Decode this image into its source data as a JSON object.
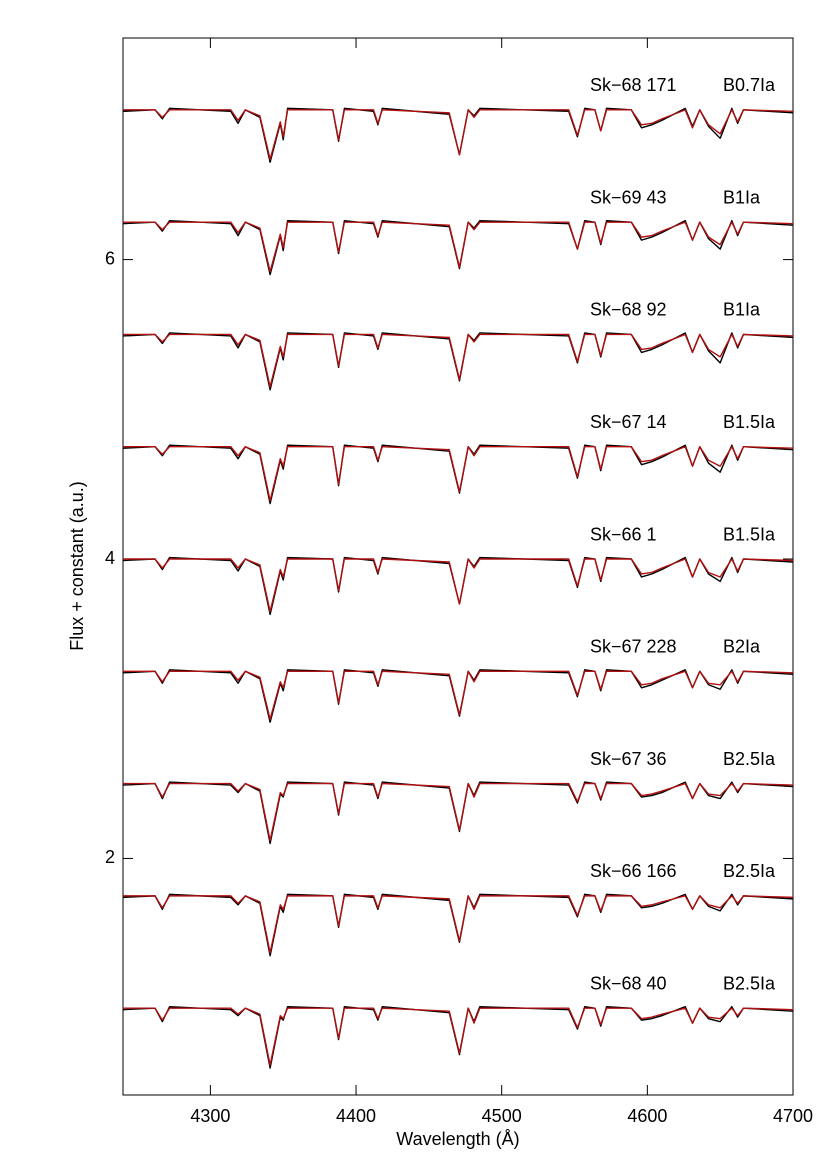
{
  "chart_data": {
    "type": "line",
    "xlabel": "Wavelength (Å)",
    "ylabel": "Flux + constant (a.u.)",
    "xlim": [
      4240,
      4700
    ],
    "ylim": [
      0.42,
      7.48
    ],
    "xticks": [
      4300,
      4400,
      4500,
      4600,
      4700
    ],
    "yticks": [
      2,
      4,
      6
    ],
    "observed_color": "#000000",
    "model_color": "#b01010",
    "x": [
      4240,
      4262,
      4267,
      4272,
      4314,
      4319,
      4324,
      4334,
      4341,
      4348,
      4350,
      4353,
      4384,
      4388,
      4392,
      4412,
      4415,
      4418,
      4464,
      4471,
      4477,
      4481,
      4485,
      4546,
      4552,
      4557,
      4564,
      4568,
      4572,
      4589,
      4596,
      4603,
      4610,
      4626,
      4631,
      4636,
      4642,
      4650,
      4658,
      4662,
      4666,
      4700
    ],
    "stars": [
      {
        "name": "Sk−68 171",
        "sptype": "B0.7Ia",
        "observed": [
          6.99,
          7.0,
          6.94,
          7.01,
          6.99,
          6.91,
          7.0,
          6.95,
          6.65,
          6.91,
          6.8,
          7.01,
          7.0,
          6.79,
          7.01,
          6.99,
          6.9,
          7.01,
          6.97,
          6.7,
          7.0,
          6.96,
          7.01,
          6.99,
          6.82,
          7.01,
          7.0,
          6.86,
          7.01,
          7.0,
          6.88,
          6.9,
          6.93,
          7.01,
          6.89,
          7.0,
          6.89,
          6.81,
          7.01,
          6.91,
          7.0,
          6.98
        ],
        "model": [
          7.0,
          7.0,
          6.95,
          7.0,
          7.0,
          6.93,
          7.0,
          6.96,
          6.67,
          6.92,
          6.82,
          7.0,
          7.0,
          6.8,
          7.0,
          7.0,
          6.91,
          7.0,
          6.98,
          6.7,
          7.0,
          6.95,
          7.0,
          7.0,
          6.83,
          7.0,
          7.0,
          6.86,
          7.0,
          7.0,
          6.9,
          6.91,
          6.94,
          7.0,
          6.88,
          7.0,
          6.9,
          6.84,
          7.0,
          6.92,
          7.0,
          6.99
        ]
      },
      {
        "name": "Sk−69 43",
        "sptype": "B1Ia",
        "observed": [
          6.24,
          6.25,
          6.19,
          6.26,
          6.24,
          6.16,
          6.25,
          6.2,
          5.9,
          6.16,
          6.06,
          6.26,
          6.25,
          6.04,
          6.26,
          6.24,
          6.15,
          6.26,
          6.22,
          5.94,
          6.25,
          6.21,
          6.26,
          6.24,
          6.07,
          6.26,
          6.25,
          6.1,
          6.26,
          6.25,
          6.13,
          6.15,
          6.18,
          6.26,
          6.13,
          6.25,
          6.14,
          6.07,
          6.26,
          6.16,
          6.25,
          6.23
        ],
        "model": [
          6.25,
          6.25,
          6.2,
          6.25,
          6.25,
          6.18,
          6.25,
          6.21,
          5.92,
          6.17,
          6.08,
          6.25,
          6.25,
          6.05,
          6.25,
          6.25,
          6.16,
          6.25,
          6.23,
          5.95,
          6.25,
          6.2,
          6.25,
          6.25,
          6.07,
          6.25,
          6.25,
          6.11,
          6.25,
          6.25,
          6.15,
          6.16,
          6.19,
          6.25,
          6.13,
          6.25,
          6.15,
          6.1,
          6.25,
          6.17,
          6.25,
          6.24
        ]
      },
      {
        "name": "Sk−68 92",
        "sptype": "B1Ia",
        "observed": [
          5.49,
          5.5,
          5.44,
          5.51,
          5.49,
          5.41,
          5.5,
          5.45,
          5.13,
          5.41,
          5.33,
          5.51,
          5.5,
          5.28,
          5.51,
          5.49,
          5.4,
          5.51,
          5.47,
          5.19,
          5.5,
          5.46,
          5.51,
          5.49,
          5.31,
          5.51,
          5.5,
          5.35,
          5.51,
          5.5,
          5.38,
          5.4,
          5.43,
          5.51,
          5.38,
          5.5,
          5.39,
          5.31,
          5.51,
          5.41,
          5.5,
          5.48
        ],
        "model": [
          5.5,
          5.5,
          5.45,
          5.5,
          5.5,
          5.43,
          5.5,
          5.46,
          5.15,
          5.42,
          5.35,
          5.5,
          5.5,
          5.29,
          5.5,
          5.5,
          5.41,
          5.5,
          5.48,
          5.2,
          5.5,
          5.45,
          5.5,
          5.5,
          5.32,
          5.5,
          5.5,
          5.36,
          5.5,
          5.5,
          5.4,
          5.41,
          5.44,
          5.5,
          5.38,
          5.5,
          5.4,
          5.35,
          5.5,
          5.42,
          5.5,
          5.49
        ]
      },
      {
        "name": "Sk−67 14",
        "sptype": "B1.5Ia",
        "observed": [
          4.74,
          4.75,
          4.69,
          4.76,
          4.74,
          4.67,
          4.75,
          4.7,
          4.37,
          4.66,
          4.6,
          4.76,
          4.75,
          4.49,
          4.76,
          4.74,
          4.65,
          4.76,
          4.72,
          4.44,
          4.75,
          4.7,
          4.76,
          4.74,
          4.54,
          4.76,
          4.75,
          4.59,
          4.76,
          4.75,
          4.63,
          4.65,
          4.68,
          4.76,
          4.62,
          4.75,
          4.64,
          4.58,
          4.76,
          4.66,
          4.75,
          4.73
        ],
        "model": [
          4.75,
          4.75,
          4.7,
          4.75,
          4.75,
          4.69,
          4.75,
          4.71,
          4.39,
          4.67,
          4.62,
          4.75,
          4.75,
          4.5,
          4.75,
          4.75,
          4.66,
          4.75,
          4.73,
          4.45,
          4.75,
          4.69,
          4.75,
          4.75,
          4.55,
          4.75,
          4.75,
          4.6,
          4.75,
          4.75,
          4.65,
          4.66,
          4.69,
          4.75,
          4.62,
          4.75,
          4.66,
          4.62,
          4.75,
          4.67,
          4.75,
          4.74
        ]
      },
      {
        "name": "Sk−66 1",
        "sptype": "B1.5Ia",
        "observed": [
          3.99,
          4.0,
          3.93,
          4.01,
          3.99,
          3.92,
          4.0,
          3.95,
          3.63,
          3.92,
          3.86,
          4.01,
          4.0,
          3.78,
          4.01,
          3.99,
          3.9,
          4.01,
          3.97,
          3.7,
          4.0,
          3.95,
          4.01,
          3.99,
          3.81,
          4.01,
          4.0,
          3.85,
          4.01,
          4.0,
          3.88,
          3.9,
          3.93,
          4.01,
          3.88,
          4.0,
          3.9,
          3.85,
          4.01,
          3.91,
          4.0,
          3.98
        ],
        "model": [
          4.0,
          4.0,
          3.94,
          4.0,
          4.0,
          3.94,
          4.0,
          3.96,
          3.65,
          3.93,
          3.88,
          4.0,
          4.0,
          3.79,
          4.0,
          4.0,
          3.91,
          4.0,
          3.98,
          3.7,
          4.0,
          3.94,
          4.0,
          4.0,
          3.82,
          4.0,
          4.0,
          3.86,
          4.0,
          4.0,
          3.9,
          3.91,
          3.94,
          4.0,
          3.88,
          4.0,
          3.91,
          3.88,
          4.0,
          3.92,
          4.0,
          3.99
        ]
      },
      {
        "name": "Sk−67 228",
        "sptype": "B2Ia",
        "observed": [
          3.24,
          3.25,
          3.17,
          3.26,
          3.24,
          3.17,
          3.25,
          3.2,
          2.91,
          3.17,
          3.12,
          3.26,
          3.25,
          3.03,
          3.26,
          3.24,
          3.15,
          3.26,
          3.22,
          2.95,
          3.25,
          3.19,
          3.26,
          3.24,
          3.08,
          3.26,
          3.25,
          3.12,
          3.26,
          3.25,
          3.14,
          3.16,
          3.19,
          3.26,
          3.14,
          3.25,
          3.16,
          3.13,
          3.26,
          3.17,
          3.25,
          3.23
        ],
        "model": [
          3.25,
          3.25,
          3.18,
          3.25,
          3.25,
          3.19,
          3.25,
          3.21,
          2.93,
          3.18,
          3.14,
          3.25,
          3.25,
          3.04,
          3.25,
          3.25,
          3.16,
          3.25,
          3.23,
          2.96,
          3.25,
          3.18,
          3.25,
          3.25,
          3.09,
          3.25,
          3.25,
          3.13,
          3.25,
          3.25,
          3.16,
          3.17,
          3.2,
          3.25,
          3.14,
          3.25,
          3.17,
          3.16,
          3.25,
          3.18,
          3.25,
          3.24
        ]
      },
      {
        "name": "Sk−67 36",
        "sptype": "B2.5Ia",
        "observed": [
          2.49,
          2.5,
          2.4,
          2.51,
          2.49,
          2.44,
          2.5,
          2.45,
          2.1,
          2.43,
          2.41,
          2.51,
          2.5,
          2.29,
          2.51,
          2.49,
          2.4,
          2.51,
          2.47,
          2.18,
          2.5,
          2.42,
          2.51,
          2.49,
          2.37,
          2.51,
          2.5,
          2.39,
          2.51,
          2.5,
          2.41,
          2.42,
          2.44,
          2.51,
          2.4,
          2.5,
          2.42,
          2.4,
          2.51,
          2.44,
          2.5,
          2.48
        ],
        "model": [
          2.5,
          2.5,
          2.41,
          2.5,
          2.5,
          2.45,
          2.5,
          2.46,
          2.12,
          2.44,
          2.42,
          2.5,
          2.5,
          2.3,
          2.5,
          2.5,
          2.41,
          2.5,
          2.48,
          2.19,
          2.5,
          2.41,
          2.5,
          2.5,
          2.38,
          2.5,
          2.5,
          2.4,
          2.5,
          2.5,
          2.42,
          2.43,
          2.45,
          2.5,
          2.4,
          2.5,
          2.43,
          2.42,
          2.5,
          2.45,
          2.5,
          2.49
        ]
      },
      {
        "name": "Sk−66 166",
        "sptype": "B2.5Ia",
        "observed": [
          1.74,
          1.75,
          1.66,
          1.76,
          1.74,
          1.69,
          1.75,
          1.7,
          1.35,
          1.68,
          1.64,
          1.76,
          1.75,
          1.54,
          1.76,
          1.74,
          1.66,
          1.76,
          1.72,
          1.44,
          1.75,
          1.67,
          1.76,
          1.74,
          1.61,
          1.76,
          1.75,
          1.64,
          1.76,
          1.75,
          1.67,
          1.68,
          1.7,
          1.76,
          1.66,
          1.75,
          1.68,
          1.65,
          1.76,
          1.69,
          1.75,
          1.73
        ],
        "model": [
          1.75,
          1.75,
          1.67,
          1.75,
          1.75,
          1.7,
          1.75,
          1.71,
          1.37,
          1.69,
          1.66,
          1.75,
          1.75,
          1.55,
          1.75,
          1.75,
          1.67,
          1.75,
          1.73,
          1.45,
          1.75,
          1.66,
          1.75,
          1.75,
          1.62,
          1.75,
          1.75,
          1.65,
          1.75,
          1.75,
          1.68,
          1.69,
          1.71,
          1.75,
          1.66,
          1.75,
          1.69,
          1.67,
          1.75,
          1.7,
          1.75,
          1.74
        ]
      },
      {
        "name": "Sk−68 40",
        "sptype": "B2.5Ia",
        "observed": [
          0.99,
          1.0,
          0.91,
          1.01,
          0.99,
          0.95,
          1.0,
          0.95,
          0.6,
          0.94,
          0.92,
          1.01,
          1.0,
          0.79,
          1.01,
          0.99,
          0.92,
          1.01,
          0.97,
          0.69,
          1.0,
          0.91,
          1.01,
          0.99,
          0.86,
          1.01,
          1.0,
          0.88,
          1.01,
          1.0,
          0.92,
          0.93,
          0.95,
          1.01,
          0.9,
          1.0,
          0.93,
          0.91,
          1.01,
          0.94,
          1.0,
          0.98
        ],
        "model": [
          1.0,
          1.0,
          0.92,
          1.0,
          1.0,
          0.96,
          1.0,
          0.96,
          0.62,
          0.95,
          0.93,
          1.0,
          1.0,
          0.8,
          1.0,
          1.0,
          0.93,
          1.0,
          0.98,
          0.7,
          1.0,
          0.9,
          1.0,
          1.0,
          0.87,
          1.0,
          1.0,
          0.89,
          1.0,
          1.0,
          0.93,
          0.94,
          0.96,
          1.0,
          0.9,
          1.0,
          0.94,
          0.93,
          1.0,
          0.95,
          1.0,
          0.99
        ]
      }
    ]
  }
}
